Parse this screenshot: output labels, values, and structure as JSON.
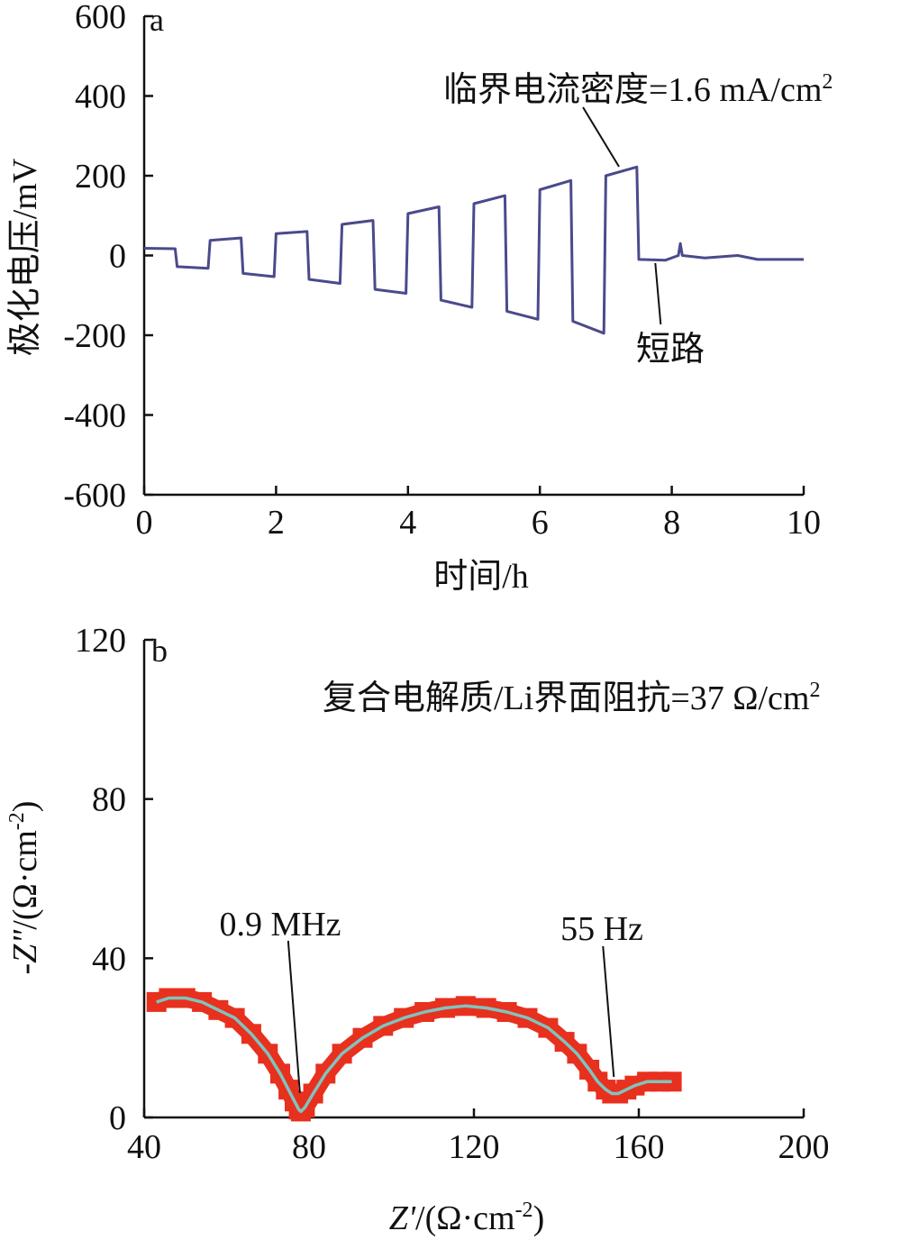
{
  "chart_data": [
    {
      "type": "line",
      "panel_label": "a",
      "xlabel": "时间/h",
      "ylabel": "极化电压/mV",
      "xlim": [
        0,
        10
      ],
      "ylim": [
        -600,
        600
      ],
      "xticks": [
        0,
        2,
        4,
        6,
        8,
        10
      ],
      "yticks": [
        600,
        400,
        200,
        0,
        -200,
        -400,
        -600
      ],
      "grid": false,
      "color": "#4a4a8c",
      "series": [
        {
          "x": [
            0,
            0.47,
            0.5,
            0.97,
            1.0,
            1.47,
            1.5,
            1.97,
            2.0,
            2.47,
            2.5,
            2.97,
            3.0,
            3.47,
            3.5,
            3.97,
            4.0,
            4.47,
            4.5,
            4.97,
            5.0,
            5.47,
            5.5,
            5.97,
            6.0,
            6.47,
            6.5,
            6.97,
            7.0,
            7.47,
            7.5,
            7.9,
            8.1,
            8.13,
            8.16,
            8.5,
            9.0,
            9.3,
            10.0
          ],
          "y": [
            18,
            17,
            -28,
            -32,
            38,
            44,
            -45,
            -53,
            55,
            60,
            -60,
            -70,
            78,
            88,
            -85,
            -95,
            105,
            122,
            -112,
            -130,
            130,
            150,
            -140,
            -160,
            165,
            188,
            -165,
            -195,
            200,
            222,
            -10,
            -12,
            0,
            30,
            0,
            -6,
            0,
            -10,
            -10
          ]
        }
      ],
      "annotations": [
        {
          "text": "临界电流密度=1.6 mA/cm",
          "superscript": "2",
          "x": 7.2,
          "y": 218
        },
        {
          "text": "短路",
          "x": 7.75,
          "y": -10
        }
      ]
    },
    {
      "type": "scatter",
      "panel_label": "b",
      "xlabel_italic": "Z'",
      "xlabel_unit": "/(Ω·cm",
      "xlabel_sup": "-2",
      "xlabel_close": ")",
      "ylabel_prefix": "-",
      "ylabel_italic": "Z\"",
      "ylabel_unit": "/(Ω·cm",
      "ylabel_sup": "-2",
      "ylabel_close": ")",
      "xlim": [
        40,
        200
      ],
      "ylim": [
        0,
        120
      ],
      "xticks": [
        40,
        80,
        120,
        160,
        200
      ],
      "yticks": [
        120,
        80,
        40,
        0
      ],
      "grid": false,
      "marker_color": "#e8301e",
      "fit_color": "#7fc4be",
      "series": [
        {
          "x": [
            43,
            46,
            50,
            54,
            58,
            62,
            66,
            70,
            73,
            75,
            76.5,
            77.5,
            78,
            79,
            81,
            84,
            88,
            93,
            98,
            103,
            108,
            113,
            118,
            123,
            128,
            133,
            138,
            142,
            145,
            148,
            150,
            152,
            153.5,
            155,
            157,
            159,
            162,
            165,
            168
          ],
          "y": [
            29,
            30,
            30,
            29,
            27,
            25,
            21,
            16,
            11,
            7,
            4,
            2,
            1.5,
            2.5,
            6,
            11,
            16,
            20,
            23,
            25,
            26.5,
            27.5,
            28,
            27.5,
            26.5,
            25,
            22.5,
            19,
            16,
            12,
            9,
            7,
            6,
            6,
            7,
            8,
            9,
            9,
            9
          ]
        }
      ],
      "annotations": [
        {
          "text": "复合电解质/Li界面阻抗=37 Ω/cm",
          "superscript": "2"
        },
        {
          "text": "0.9 MHz",
          "x": 78,
          "y": 3
        },
        {
          "text": "55 Hz",
          "x": 153.5,
          "y": 7
        }
      ]
    }
  ]
}
